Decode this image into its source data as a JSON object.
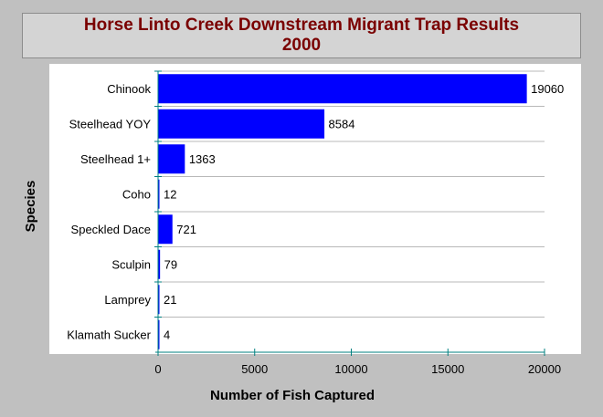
{
  "chart_data": {
    "type": "bar",
    "orientation": "horizontal",
    "title": "Horse Linto Creek Downstream Migrant Trap Results",
    "subtitle": "2000",
    "xlabel": "Number of Fish Captured",
    "ylabel": "Species",
    "categories": [
      "Chinook",
      "Steelhead YOY",
      "Steelhead 1+",
      "Coho",
      "Speckled Dace",
      "Sculpin",
      "Lamprey",
      "Klamath Sucker"
    ],
    "values": [
      19060,
      8584,
      1363,
      12,
      721,
      79,
      21,
      4
    ],
    "data_labels": [
      "19060",
      "8584",
      "1363",
      "12",
      "721",
      "79",
      "21",
      "4"
    ],
    "xlim": [
      0,
      20000
    ],
    "xticks": [
      0,
      5000,
      10000,
      15000,
      20000
    ],
    "xtick_labels": [
      "0",
      "5000",
      "10000",
      "15000",
      "20000"
    ],
    "grid": true,
    "bar_color": "#0000ff",
    "plot_background": "#ffffff",
    "page_background": "#c0c0c0",
    "title_color": "#7a0000",
    "axis_color": "#008080"
  }
}
